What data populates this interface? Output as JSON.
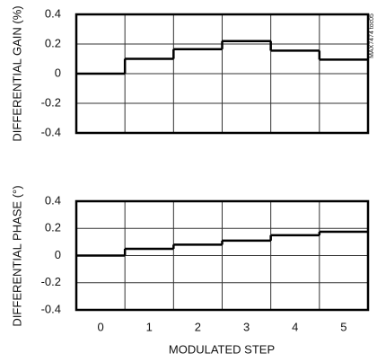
{
  "chart_data": [
    {
      "type": "step",
      "y_label": "DIFFERENTIAL GAIN (%)",
      "annotation": "MAX7474 toc05",
      "values": [
        0,
        0.1,
        0.165,
        0.22,
        0.155,
        0.095
      ],
      "color": "#000000",
      "ylim": [
        -0.4,
        0.4
      ],
      "yticks": [
        -0.4,
        -0.2,
        0,
        0.2,
        0.4
      ],
      "grid": true
    },
    {
      "type": "step",
      "y_label": "DIFFERENTIAL PHASE (°)",
      "x_label": "MODULATED STEP",
      "categories": [
        "0",
        "1",
        "2",
        "3",
        "4",
        "5"
      ],
      "values": [
        0,
        0.05,
        0.08,
        0.11,
        0.15,
        0.175
      ],
      "color": "#000000",
      "ylim": [
        -0.4,
        0.4
      ],
      "yticks": [
        -0.4,
        -0.2,
        0,
        0.2,
        0.4
      ],
      "grid": true
    }
  ]
}
